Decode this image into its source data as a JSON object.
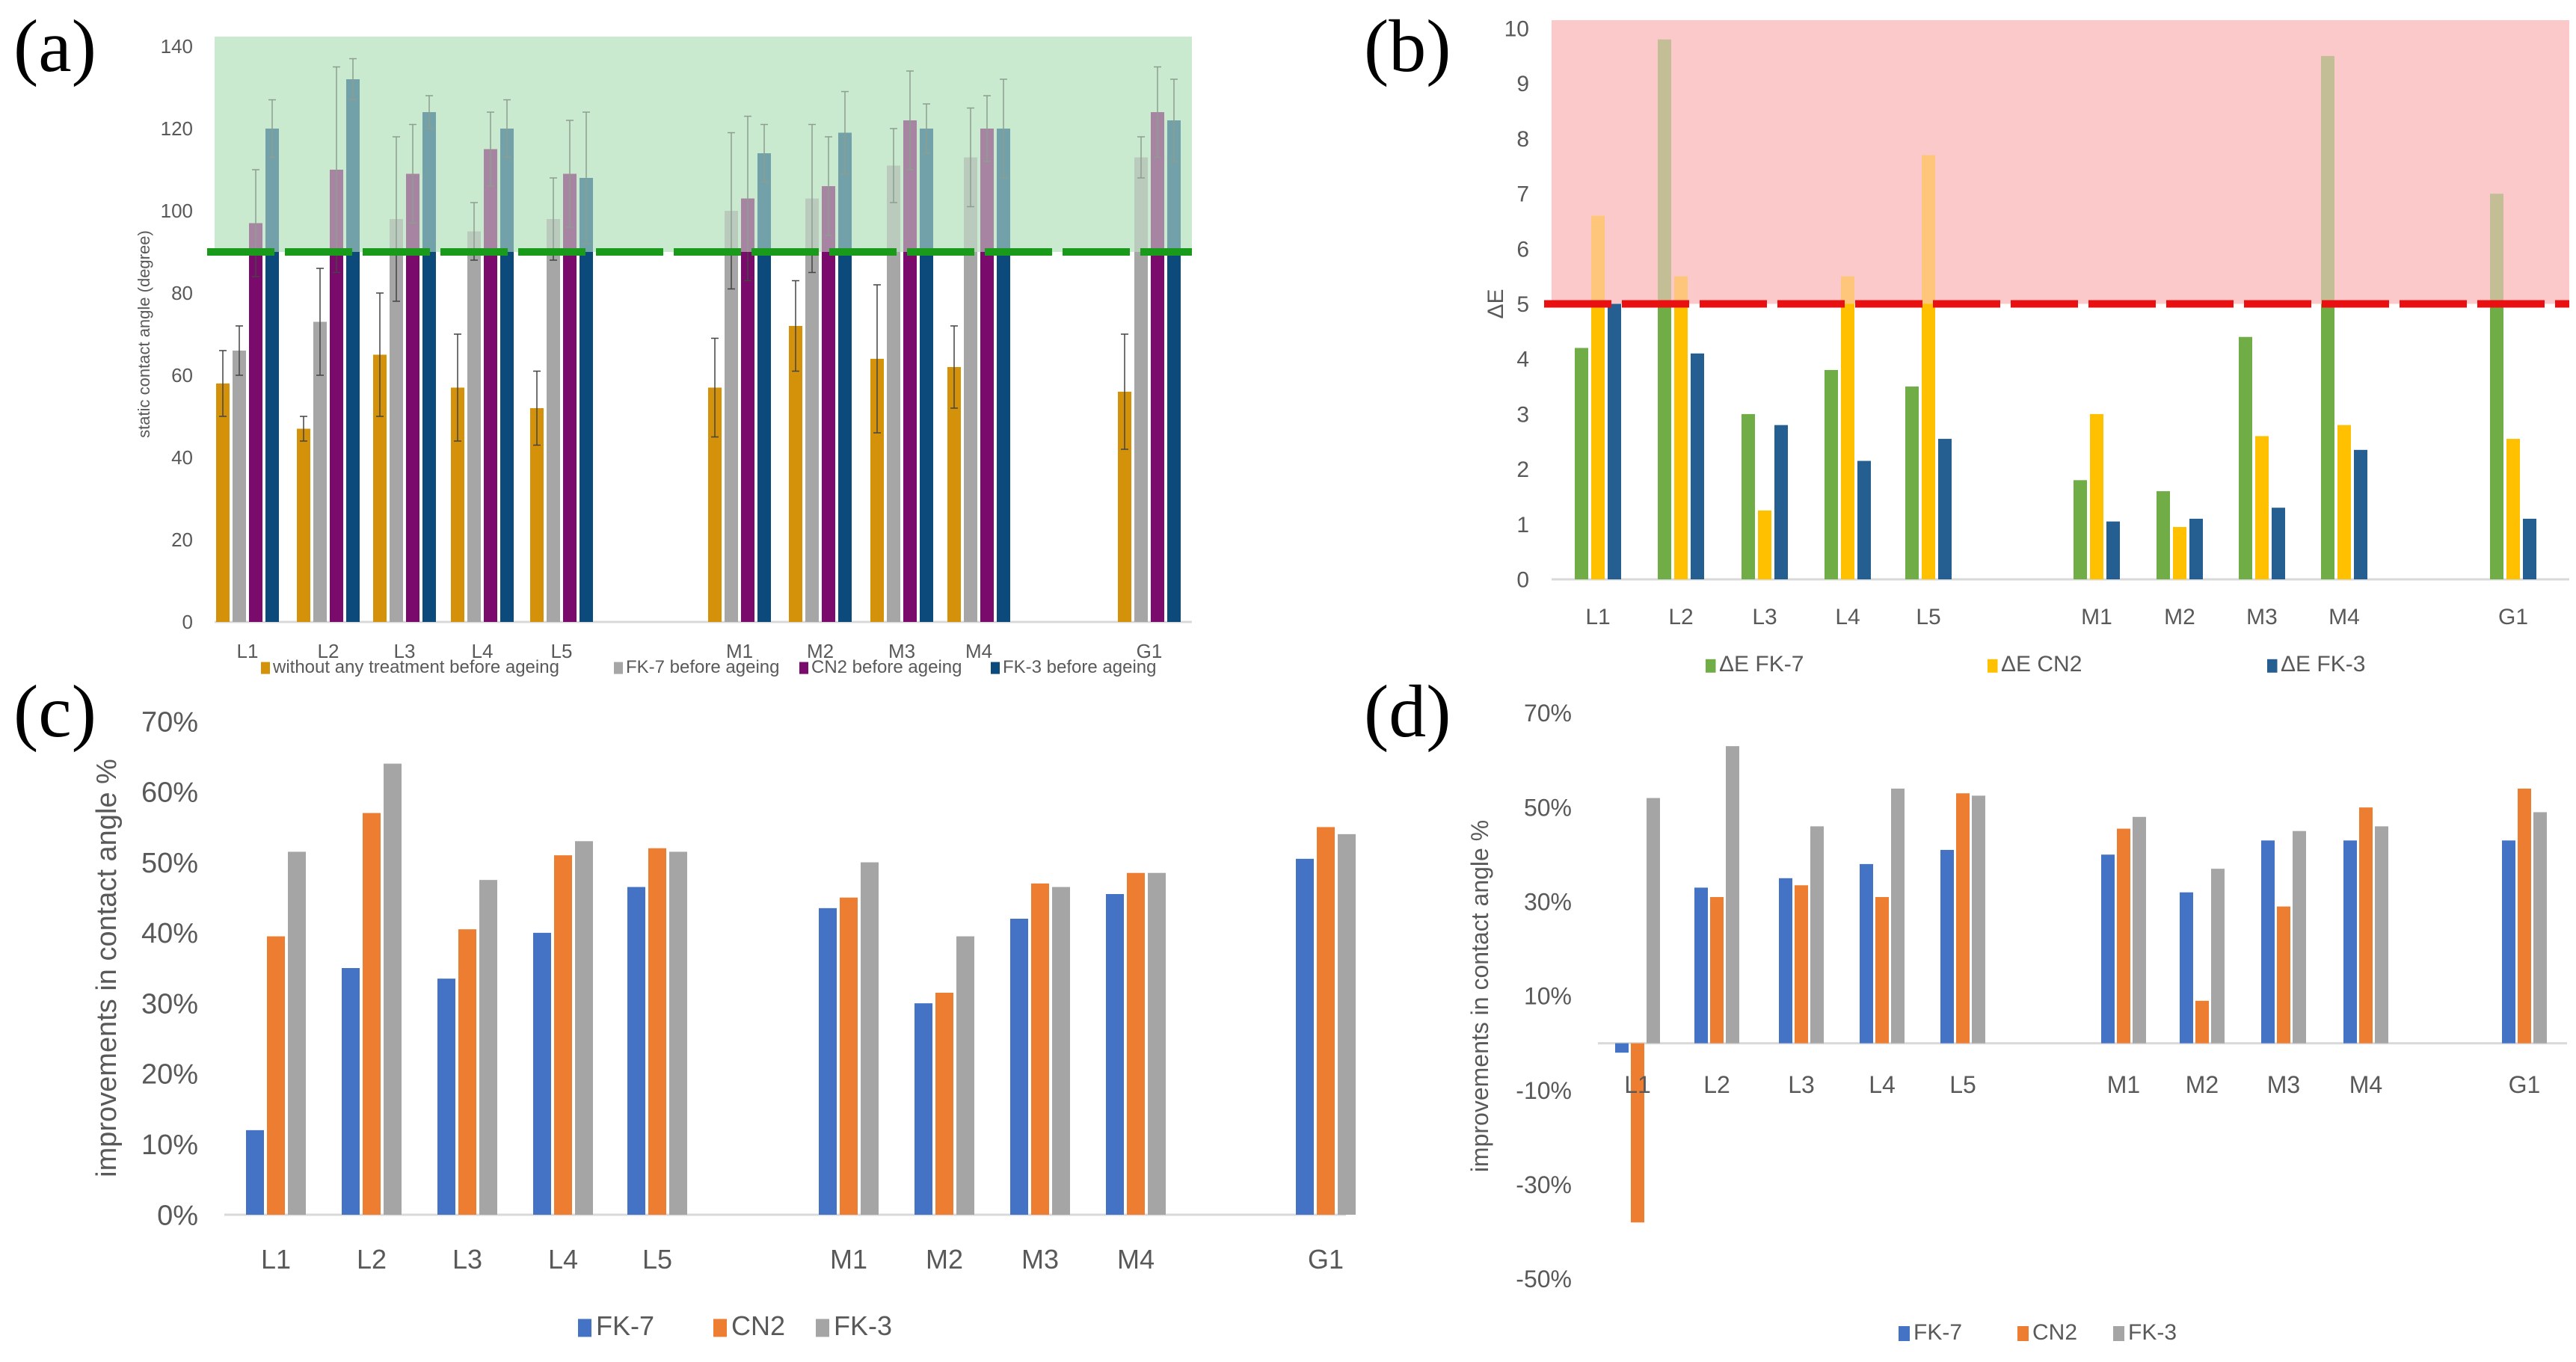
{
  "chart_data": [
    {
      "panel_label": "(a)",
      "type": "bar",
      "categories": [
        "L1",
        "L2",
        "L3",
        "L4",
        "L5",
        "M1",
        "M2",
        "M3",
        "M4",
        "G1"
      ],
      "ylabel": "static contact angle (degree)",
      "xlabel": "",
      "ylim": [
        0,
        140
      ],
      "yticks": [
        0,
        20,
        40,
        60,
        80,
        100,
        120,
        140
      ],
      "threshold": 90,
      "highlight_region": [
        90,
        140
      ],
      "legend_position": "bottom",
      "colors": {
        "bg": "#cbeacf",
        "threshold": "#1a9a1a"
      },
      "series": [
        {
          "name": "without any treatment before ageing",
          "color": "#d4920a",
          "values": [
            58,
            47,
            65,
            57,
            52,
            57,
            72,
            64,
            62,
            56
          ],
          "errors": [
            8,
            3,
            15,
            13,
            9,
            12,
            11,
            18,
            10,
            14
          ]
        },
        {
          "name": "FK-7 before ageing",
          "color": "#a6a6a6",
          "values": [
            66,
            73,
            98,
            95,
            98,
            100,
            103,
            111,
            113,
            113
          ],
          "errors": [
            6,
            13,
            20,
            7,
            10,
            19,
            18,
            9,
            12,
            5
          ]
        },
        {
          "name": "CN2 before ageing",
          "color": "#7a0a6b",
          "values": [
            97,
            110,
            109,
            115,
            109,
            103,
            106,
            122,
            120,
            124
          ],
          "errors": [
            13,
            25,
            12,
            9,
            13,
            20,
            12,
            12,
            8,
            11
          ]
        },
        {
          "name": "FK-3 before ageing",
          "color": "#0b4a7a",
          "values": [
            120,
            132,
            124,
            120,
            108,
            114,
            119,
            120,
            120,
            122
          ],
          "errors": [
            7,
            5,
            4,
            7,
            16,
            7,
            10,
            6,
            12,
            10
          ]
        }
      ]
    },
    {
      "panel_label": "(b)",
      "type": "bar",
      "categories": [
        "L1",
        "L2",
        "L3",
        "L4",
        "L5",
        "M1",
        "M2",
        "M3",
        "M4",
        "G1"
      ],
      "ylabel": "ΔE",
      "xlabel": "",
      "ylim": [
        0,
        10
      ],
      "yticks": [
        0,
        1,
        2,
        3,
        4,
        5,
        6,
        7,
        8,
        9,
        10
      ],
      "threshold": 5,
      "highlight_region": [
        5,
        10
      ],
      "legend_position": "bottom",
      "colors": {
        "bg": "#fcc9cb",
        "threshold": "#e81010"
      },
      "series": [
        {
          "name": "ΔE FK-7",
          "color": "#70ad47",
          "values": [
            4.2,
            9.8,
            3.0,
            3.8,
            3.5,
            1.8,
            1.6,
            4.4,
            9.5,
            7.0
          ]
        },
        {
          "name": "ΔE CN2",
          "color": "#ffc000",
          "values": [
            6.6,
            5.5,
            1.25,
            5.5,
            7.7,
            3.0,
            0.95,
            2.6,
            2.8,
            2.55
          ]
        },
        {
          "name": "ΔE FK-3",
          "color": "#255e91",
          "values": [
            5.0,
            4.1,
            2.8,
            2.15,
            2.55,
            1.05,
            1.1,
            1.3,
            2.35,
            1.1
          ]
        }
      ]
    },
    {
      "panel_label": "(c)",
      "type": "bar",
      "categories": [
        "L1",
        "L2",
        "L3",
        "L4",
        "L5",
        "M1",
        "M2",
        "M3",
        "M4",
        "G1"
      ],
      "ylabel": "improvements in contact angle %",
      "xlabel": "",
      "ylim": [
        0,
        70
      ],
      "yticks": [
        0,
        10,
        20,
        30,
        40,
        50,
        60,
        70
      ],
      "tick_suffix": "%",
      "legend_position": "bottom",
      "series": [
        {
          "name": "FK-7",
          "color": "#4472c4",
          "values": [
            12,
            35,
            33.5,
            40,
            46.5,
            43.5,
            30,
            42,
            45.5,
            50.5
          ]
        },
        {
          "name": "CN2",
          "color": "#ed7d31",
          "values": [
            39.5,
            57,
            40.5,
            51,
            52,
            45,
            31.5,
            47,
            48.5,
            55
          ]
        },
        {
          "name": "FK-3",
          "color": "#a5a5a5",
          "values": [
            51.5,
            64,
            47.5,
            53,
            51.5,
            50,
            39.5,
            46.5,
            48.5,
            54
          ]
        }
      ]
    },
    {
      "panel_label": "(d)",
      "type": "bar",
      "categories": [
        "L1",
        "L2",
        "L3",
        "L4",
        "L5",
        "M1",
        "M2",
        "M3",
        "M4",
        "G1"
      ],
      "ylabel": "improvements in contact angle %",
      "xlabel": "",
      "ylim": [
        -50,
        70
      ],
      "yticks": [
        -50,
        -30,
        -10,
        10,
        30,
        50,
        70
      ],
      "tick_suffix": "%",
      "legend_position": "bottom",
      "series": [
        {
          "name": "FK-7",
          "color": "#4472c4",
          "values": [
            -2,
            33,
            35,
            38,
            41,
            40,
            32,
            43,
            43,
            43
          ]
        },
        {
          "name": "CN2",
          "color": "#ed7d31",
          "values": [
            -38,
            31,
            33.5,
            31,
            53,
            45.5,
            9,
            29,
            50,
            54
          ]
        },
        {
          "name": "FK-3",
          "color": "#a5a5a5",
          "values": [
            52,
            63,
            46,
            54,
            52.5,
            48,
            37,
            45,
            46,
            49
          ]
        }
      ]
    }
  ]
}
